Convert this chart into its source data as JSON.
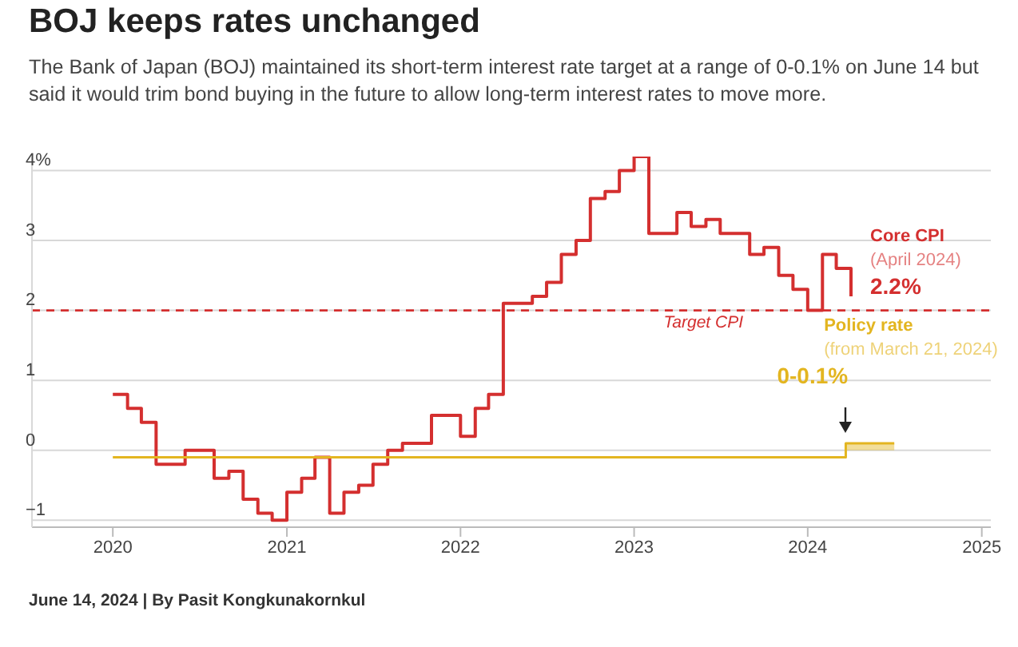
{
  "chart_data": {
    "type": "step",
    "title": "BOJ keeps rates unchanged",
    "subtitle": "The Bank of Japan (BOJ) maintained its short-term interest rate target at a range of 0-0.1% on June 14 but said it would trim bond buying in the future to allow long-term interest rates to move more.",
    "x": [
      "2020-01",
      "2020-02",
      "2020-03",
      "2020-04",
      "2020-05",
      "2020-06",
      "2020-07",
      "2020-08",
      "2020-09",
      "2020-10",
      "2020-11",
      "2020-12",
      "2021-01",
      "2021-02",
      "2021-03",
      "2021-04",
      "2021-05",
      "2021-06",
      "2021-07",
      "2021-08",
      "2021-09",
      "2021-10",
      "2021-11",
      "2021-12",
      "2022-01",
      "2022-02",
      "2022-03",
      "2022-04",
      "2022-05",
      "2022-06",
      "2022-07",
      "2022-08",
      "2022-09",
      "2022-10",
      "2022-11",
      "2022-12",
      "2023-01",
      "2023-02",
      "2023-03",
      "2023-04",
      "2023-05",
      "2023-06",
      "2023-07",
      "2023-08",
      "2023-09",
      "2023-10",
      "2023-11",
      "2023-12",
      "2024-01",
      "2024-02",
      "2024-03",
      "2024-04"
    ],
    "series": [
      {
        "name": "Core CPI",
        "color": "#d42f2f",
        "values": [
          0.8,
          0.6,
          0.4,
          -0.2,
          -0.2,
          0.0,
          0.0,
          -0.4,
          -0.3,
          -0.7,
          -0.9,
          -1.0,
          -0.6,
          -0.4,
          -0.1,
          -0.9,
          -0.6,
          -0.5,
          -0.2,
          0.0,
          0.1,
          0.1,
          0.5,
          0.5,
          0.2,
          0.6,
          0.8,
          2.1,
          2.1,
          2.2,
          2.4,
          2.8,
          3.0,
          3.6,
          3.7,
          4.0,
          4.2,
          3.1,
          3.1,
          3.4,
          3.2,
          3.3,
          3.1,
          3.1,
          2.8,
          2.9,
          2.5,
          2.3,
          2.0,
          2.8,
          2.6,
          2.2
        ]
      },
      {
        "name": "Policy rate",
        "color": "#e3b520",
        "x": [
          "2020-01",
          "2024-03-21",
          "2024-07"
        ],
        "values": [
          -0.1,
          0.1,
          0.1
        ],
        "lower": [
          null,
          0,
          0
        ],
        "upper": [
          null,
          0.1,
          0.1
        ]
      }
    ],
    "xlim": [
      "2019-07-15",
      "2025-01-20"
    ],
    "xticks": [
      {
        "value": "2020",
        "label": "2020"
      },
      {
        "value": "2021",
        "label": "2021"
      },
      {
        "value": "2022",
        "label": "2022"
      },
      {
        "value": "2023",
        "label": "2023"
      },
      {
        "value": "2024",
        "label": "2024"
      },
      {
        "value": "2025",
        "label": "2025"
      }
    ],
    "ylim": [
      -1.1,
      4.2
    ],
    "yticks": [
      {
        "value": -1,
        "label": "−1"
      },
      0,
      1,
      2,
      3,
      {
        "value": 4,
        "label": "4%"
      }
    ],
    "grid": "y",
    "legend": false,
    "ref_lines": [
      {
        "axis": "y",
        "value": 2,
        "label": "Target CPI",
        "color": "#d42f2f",
        "line_style": "dashed"
      }
    ],
    "annotations": [
      "(April 2024)",
      "(from March 21, 2024)",
      {
        "text": "2.2%",
        "x": "2024-04",
        "y": 2.2
      },
      {
        "text": "0-0.1%",
        "x": "2024-03-21",
        "y": 0.1
      },
      "June 14, 2024 | By Pasit Kongkunakornkul"
    ]
  }
}
